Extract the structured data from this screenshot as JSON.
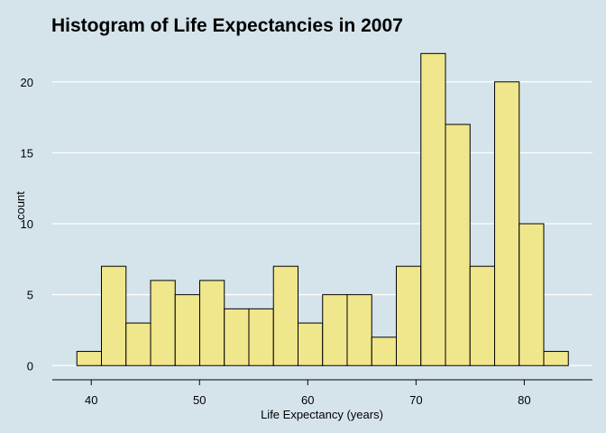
{
  "chart_data": {
    "type": "bar",
    "title": "Histogram of Life Expectancies in 2007",
    "xlabel": "Life Expectancy (years)",
    "ylabel": "count",
    "bin_width": 2.27,
    "bins": [
      {
        "start": 38.67,
        "end": 40.94,
        "count": 1
      },
      {
        "start": 40.94,
        "end": 43.21,
        "count": 7
      },
      {
        "start": 43.21,
        "end": 45.48,
        "count": 3
      },
      {
        "start": 45.48,
        "end": 47.75,
        "count": 6
      },
      {
        "start": 47.75,
        "end": 50.02,
        "count": 5
      },
      {
        "start": 50.02,
        "end": 52.29,
        "count": 6
      },
      {
        "start": 52.29,
        "end": 54.56,
        "count": 4
      },
      {
        "start": 54.56,
        "end": 56.83,
        "count": 4
      },
      {
        "start": 56.83,
        "end": 59.1,
        "count": 7
      },
      {
        "start": 59.1,
        "end": 61.37,
        "count": 3
      },
      {
        "start": 61.37,
        "end": 63.64,
        "count": 5
      },
      {
        "start": 63.64,
        "end": 65.91,
        "count": 5
      },
      {
        "start": 65.91,
        "end": 68.18,
        "count": 2
      },
      {
        "start": 68.18,
        "end": 70.45,
        "count": 7
      },
      {
        "start": 70.45,
        "end": 72.72,
        "count": 22
      },
      {
        "start": 72.72,
        "end": 74.99,
        "count": 17
      },
      {
        "start": 74.99,
        "end": 77.26,
        "count": 7
      },
      {
        "start": 77.26,
        "end": 79.53,
        "count": 20
      },
      {
        "start": 79.53,
        "end": 81.8,
        "count": 10
      },
      {
        "start": 81.8,
        "end": 84.07,
        "count": 1
      }
    ],
    "xlim": [
      36.4,
      86.3
    ],
    "ylim": [
      -1.0,
      23.1
    ],
    "x_ticks": [
      40,
      50,
      60,
      70,
      80
    ],
    "y_ticks": [
      0,
      5,
      10,
      15,
      20
    ],
    "grid": "horizontal major lines",
    "colors": {
      "background": "#d5e4eb",
      "bar_fill": "#f0e68c",
      "bar_outline": "#000000",
      "gridline": "#ffffff"
    }
  }
}
